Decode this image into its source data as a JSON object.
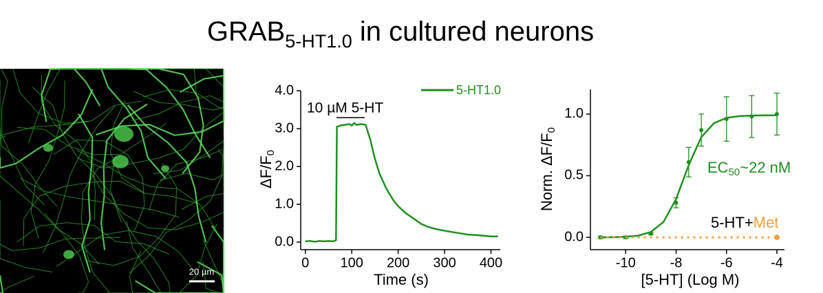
{
  "title": {
    "main": "GRAB",
    "sub": "5-HT1.0",
    "rest": " in cultured neurons"
  },
  "image": {
    "scale_bar": "20 µm"
  },
  "chart_data": [
    {
      "type": "line",
      "ylabel": {
        "main": "ΔF/F",
        "sub": "0"
      },
      "xlabel": "Time (s)",
      "annotation": "10 µM 5-HT",
      "xlim": [
        -10,
        420
      ],
      "ylim": [
        -0.2,
        4.0
      ],
      "xticks": [
        0,
        100,
        200,
        300,
        400
      ],
      "yticks": [
        {
          "value": 0,
          "label": "0.0"
        },
        {
          "value": 1,
          "label": "1.0"
        },
        {
          "value": 2,
          "label": "2.0"
        },
        {
          "value": 3,
          "label": "3.0"
        },
        {
          "value": 4,
          "label": "4.0"
        }
      ],
      "legend": "top-right",
      "x": [
        0,
        10,
        20,
        30,
        40,
        50,
        60,
        66,
        68,
        75,
        85,
        95,
        100,
        105,
        110,
        120,
        130,
        140,
        150,
        160,
        175,
        190,
        200,
        215,
        230,
        250,
        265,
        280,
        300,
        325,
        350,
        375,
        400,
        415
      ],
      "series": [
        {
          "name": "5-HT1.0",
          "color": "#1f8f1f",
          "values": [
            0.02,
            0.03,
            0.01,
            0.03,
            0.02,
            0.03,
            0.02,
            0.05,
            3.05,
            3.08,
            3.1,
            3.12,
            3.08,
            3.15,
            3.1,
            3.12,
            3.1,
            2.7,
            2.2,
            1.8,
            1.4,
            1.1,
            0.95,
            0.78,
            0.65,
            0.48,
            0.4,
            0.35,
            0.3,
            0.25,
            0.2,
            0.18,
            0.15,
            0.15
          ]
        }
      ]
    },
    {
      "type": "scatter",
      "ylabel": {
        "main": "Norm. ΔF/F",
        "sub": "0"
      },
      "xlabel": "[5-HT] (Log M)",
      "annotation": {
        "main": "EC",
        "sub": "50",
        "rest": "~22 nM"
      },
      "label": {
        "main": "5-HT+",
        "accent": "Met"
      },
      "xlim": [
        -11.4,
        -3.7
      ],
      "ylim": [
        -0.1,
        1.2
      ],
      "xticks": [
        -10,
        -8,
        -6,
        -4
      ],
      "yticks": [
        {
          "value": 0,
          "label": "0.0"
        },
        {
          "value": 0.5,
          "label": "0.5"
        },
        {
          "value": 1,
          "label": "1.0"
        }
      ],
      "series": [
        {
          "color": "#1f8f1f",
          "marker": "circle",
          "x": [
            -11,
            -10,
            -9,
            -8,
            -7.5,
            -7,
            -6,
            -5,
            -4
          ],
          "values": [
            0.0,
            0.0,
            0.03,
            0.28,
            0.61,
            0.87,
            0.96,
            0.98,
            1.0
          ],
          "errors": [
            0.01,
            0.01,
            0.01,
            0.04,
            0.12,
            0.13,
            0.18,
            0.17,
            0.17
          ]
        },
        {
          "color": "#1f8f1f",
          "line": "solid",
          "x": [
            -11,
            -10.5,
            -10,
            -9.5,
            -9,
            -8.5,
            -8,
            -7.5,
            -7,
            -6.5,
            -6,
            -5.5,
            -5,
            -4.5,
            -4
          ],
          "values": [
            0.0,
            0.001,
            0.005,
            0.014,
            0.044,
            0.125,
            0.311,
            0.585,
            0.813,
            0.926,
            0.969,
            0.983,
            0.988,
            0.989,
            0.99
          ]
        },
        {
          "color": "#f0a040",
          "line": "dotted",
          "x": [
            -11,
            -10,
            -9,
            -8,
            -7,
            -6,
            -5,
            -4
          ],
          "values": [
            0,
            0,
            0,
            0,
            0,
            0,
            0,
            0
          ]
        }
      ]
    }
  ]
}
